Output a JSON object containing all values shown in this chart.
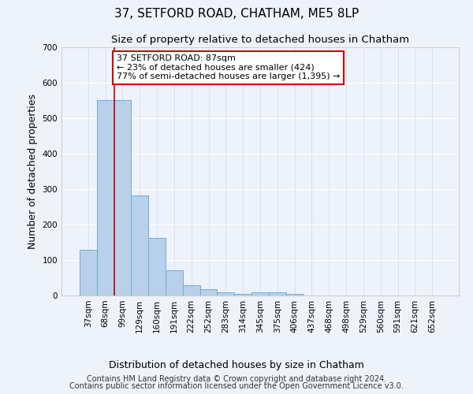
{
  "title": "37, SETFORD ROAD, CHATHAM, ME5 8LP",
  "subtitle": "Size of property relative to detached houses in Chatham",
  "xlabel": "Distribution of detached houses by size in Chatham",
  "ylabel": "Number of detached properties",
  "footer_line1": "Contains HM Land Registry data © Crown copyright and database right 2024.",
  "footer_line2": "Contains public sector information licensed under the Open Government Licence v3.0.",
  "bar_categories": [
    "37sqm",
    "68sqm",
    "99sqm",
    "129sqm",
    "160sqm",
    "191sqm",
    "222sqm",
    "252sqm",
    "283sqm",
    "314sqm",
    "345sqm",
    "375sqm",
    "406sqm",
    "437sqm",
    "468sqm",
    "498sqm",
    "529sqm",
    "560sqm",
    "591sqm",
    "621sqm",
    "652sqm"
  ],
  "bar_values": [
    128,
    552,
    551,
    283,
    163,
    72,
    29,
    17,
    10,
    5,
    10,
    10,
    4,
    0,
    0,
    0,
    0,
    0,
    0,
    0,
    0
  ],
  "bar_color": "#b8d0ea",
  "bar_edge_color": "#6baed6",
  "annotation_box_text": "37 SETFORD ROAD: 87sqm\n← 23% of detached houses are smaller (424)\n77% of semi-detached houses are larger (1,395) →",
  "annotation_box_color": "#ffffff",
  "annotation_box_edge_color": "#cc0000",
  "annotation_text_color": "#000000",
  "vline_color": "#cc0000",
  "vline_x_bar_index": 1.5,
  "ylim": [
    0,
    700
  ],
  "yticks": [
    0,
    100,
    200,
    300,
    400,
    500,
    600,
    700
  ],
  "background_color": "#eef2fb",
  "grid_color": "#ffffff",
  "title_fontsize": 11,
  "subtitle_fontsize": 9.5,
  "ylabel_fontsize": 9,
  "xlabel_fontsize": 9,
  "tick_fontsize": 7.5,
  "annot_fontsize": 8,
  "footer_fontsize": 7
}
